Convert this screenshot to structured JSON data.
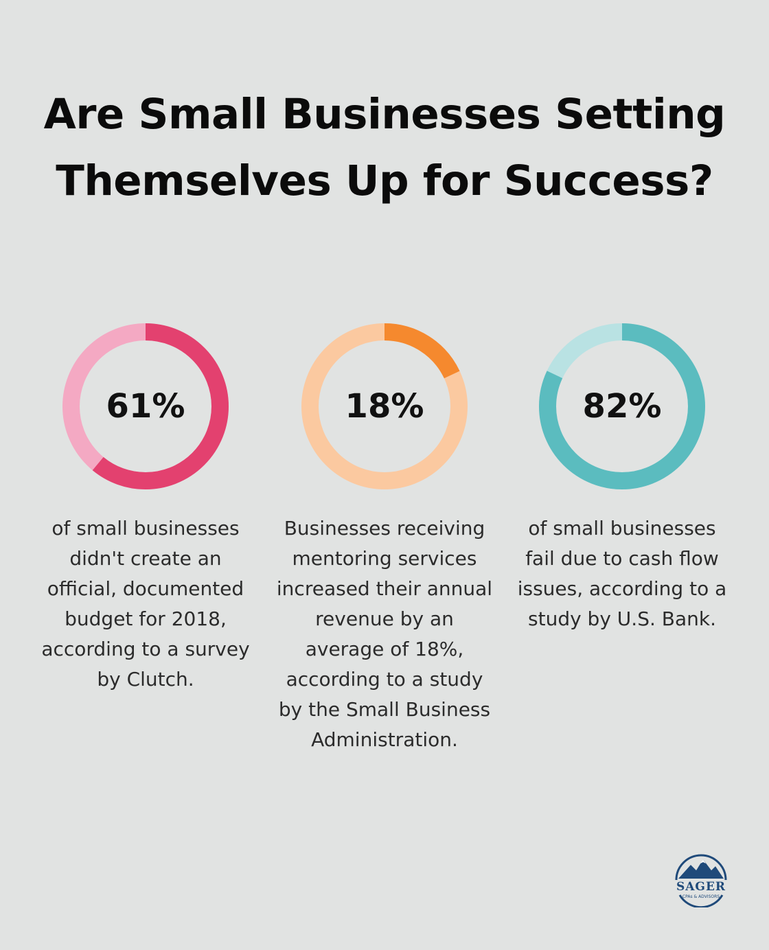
{
  "title": "Are Small Businesses Setting Themselves Up for Success?",
  "chart_data": [
    {
      "type": "pie",
      "value": 61,
      "value_label": "61%",
      "caption": "of small businesses didn't create an official, documented budget for 2018, according to a survey by Clutch.",
      "colors": {
        "fill": "#e3416f",
        "track": "#f4a9c3"
      }
    },
    {
      "type": "pie",
      "value": 18,
      "value_label": "18%",
      "caption": "Businesses receiving mentoring services increased their annual revenue by an average of 18%, according to a study by the Small Business Administration.",
      "colors": {
        "fill": "#f5892e",
        "track": "#fbc9a0"
      }
    },
    {
      "type": "pie",
      "value": 82,
      "value_label": "82%",
      "caption": "of small businesses fail due to cash flow issues, according to a study by U.S. Bank.",
      "colors": {
        "fill": "#5bbcbf",
        "track": "#b9e2e3"
      }
    }
  ],
  "logo": {
    "name": "SAGER",
    "tagline": "CPAs & ADVISORS",
    "icon": "mountain-icon",
    "color": "#1f4a7a"
  }
}
